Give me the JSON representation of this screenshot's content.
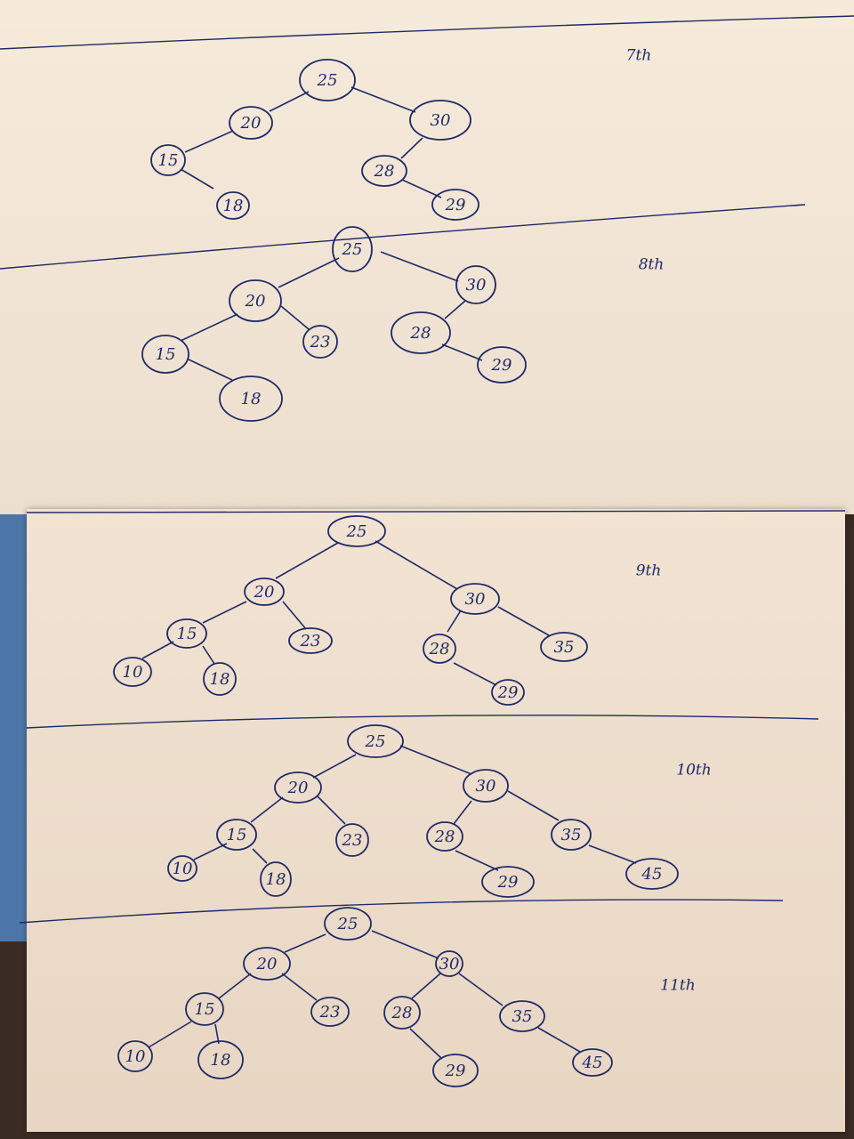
{
  "panels": [
    {
      "label": "7th",
      "nodes": [
        {
          "id": "a25",
          "value": "25"
        },
        {
          "id": "a20",
          "value": "20"
        },
        {
          "id": "a30",
          "value": "30"
        },
        {
          "id": "a15",
          "value": "15"
        },
        {
          "id": "a28",
          "value": "28"
        },
        {
          "id": "a18",
          "value": "18"
        },
        {
          "id": "a29",
          "value": "29"
        }
      ],
      "edges": [
        [
          "a25",
          "a20"
        ],
        [
          "a25",
          "a30"
        ],
        [
          "a20",
          "a15"
        ],
        [
          "a15",
          "a18"
        ],
        [
          "a30",
          "a28"
        ],
        [
          "a28",
          "a29"
        ]
      ]
    },
    {
      "label": "8th",
      "nodes": [
        {
          "id": "b25",
          "value": "25"
        },
        {
          "id": "b20",
          "value": "20"
        },
        {
          "id": "b30",
          "value": "30"
        },
        {
          "id": "b15",
          "value": "15"
        },
        {
          "id": "b23",
          "value": "23"
        },
        {
          "id": "b28",
          "value": "28"
        },
        {
          "id": "b18",
          "value": "18"
        },
        {
          "id": "b29",
          "value": "29"
        }
      ],
      "edges": [
        [
          "b25",
          "b20"
        ],
        [
          "b25",
          "b30"
        ],
        [
          "b20",
          "b15"
        ],
        [
          "b20",
          "b23"
        ],
        [
          "b15",
          "b18"
        ],
        [
          "b30",
          "b28"
        ],
        [
          "b28",
          "b29"
        ]
      ]
    },
    {
      "label": "9th",
      "nodes": [
        {
          "id": "c25",
          "value": "25"
        },
        {
          "id": "c20",
          "value": "20"
        },
        {
          "id": "c30",
          "value": "30"
        },
        {
          "id": "c15",
          "value": "15"
        },
        {
          "id": "c23",
          "value": "23"
        },
        {
          "id": "c28",
          "value": "28"
        },
        {
          "id": "c35",
          "value": "35"
        },
        {
          "id": "c10",
          "value": "10"
        },
        {
          "id": "c18",
          "value": "18"
        },
        {
          "id": "c29",
          "value": "29"
        }
      ],
      "edges": [
        [
          "c25",
          "c20"
        ],
        [
          "c25",
          "c30"
        ],
        [
          "c20",
          "c15"
        ],
        [
          "c20",
          "c23"
        ],
        [
          "c15",
          "c10"
        ],
        [
          "c15",
          "c18"
        ],
        [
          "c30",
          "c28"
        ],
        [
          "c30",
          "c35"
        ],
        [
          "c28",
          "c29"
        ]
      ]
    },
    {
      "label": "10th",
      "nodes": [
        {
          "id": "d25",
          "value": "25"
        },
        {
          "id": "d20",
          "value": "20"
        },
        {
          "id": "d30",
          "value": "30"
        },
        {
          "id": "d15",
          "value": "15"
        },
        {
          "id": "d23",
          "value": "23"
        },
        {
          "id": "d28",
          "value": "28"
        },
        {
          "id": "d35",
          "value": "35"
        },
        {
          "id": "d10",
          "value": "10"
        },
        {
          "id": "d18",
          "value": "18"
        },
        {
          "id": "d29",
          "value": "29"
        },
        {
          "id": "d45",
          "value": "45"
        }
      ],
      "edges": [
        [
          "d25",
          "d20"
        ],
        [
          "d25",
          "d30"
        ],
        [
          "d20",
          "d15"
        ],
        [
          "d20",
          "d23"
        ],
        [
          "d15",
          "d10"
        ],
        [
          "d15",
          "d18"
        ],
        [
          "d30",
          "d28"
        ],
        [
          "d30",
          "d35"
        ],
        [
          "d28",
          "d29"
        ],
        [
          "d35",
          "d45"
        ]
      ]
    },
    {
      "label": "11th",
      "nodes": [
        {
          "id": "e25",
          "value": "25"
        },
        {
          "id": "e20",
          "value": "20"
        },
        {
          "id": "e30",
          "value": "30"
        },
        {
          "id": "e15",
          "value": "15"
        },
        {
          "id": "e23",
          "value": "23"
        },
        {
          "id": "e28",
          "value": "28"
        },
        {
          "id": "e35",
          "value": "35"
        },
        {
          "id": "e10",
          "value": "10"
        },
        {
          "id": "e18",
          "value": "18"
        },
        {
          "id": "e29",
          "value": "29"
        },
        {
          "id": "e45",
          "value": "45"
        }
      ],
      "edges": [
        [
          "e25",
          "e20"
        ],
        [
          "e25",
          "e30"
        ],
        [
          "e20",
          "e15"
        ],
        [
          "e20",
          "e23"
        ],
        [
          "e15",
          "e10"
        ],
        [
          "e15",
          "e18"
        ],
        [
          "e30",
          "e28"
        ],
        [
          "e30",
          "e35"
        ],
        [
          "e28",
          "e29"
        ],
        [
          "e35",
          "e45"
        ]
      ]
    }
  ]
}
